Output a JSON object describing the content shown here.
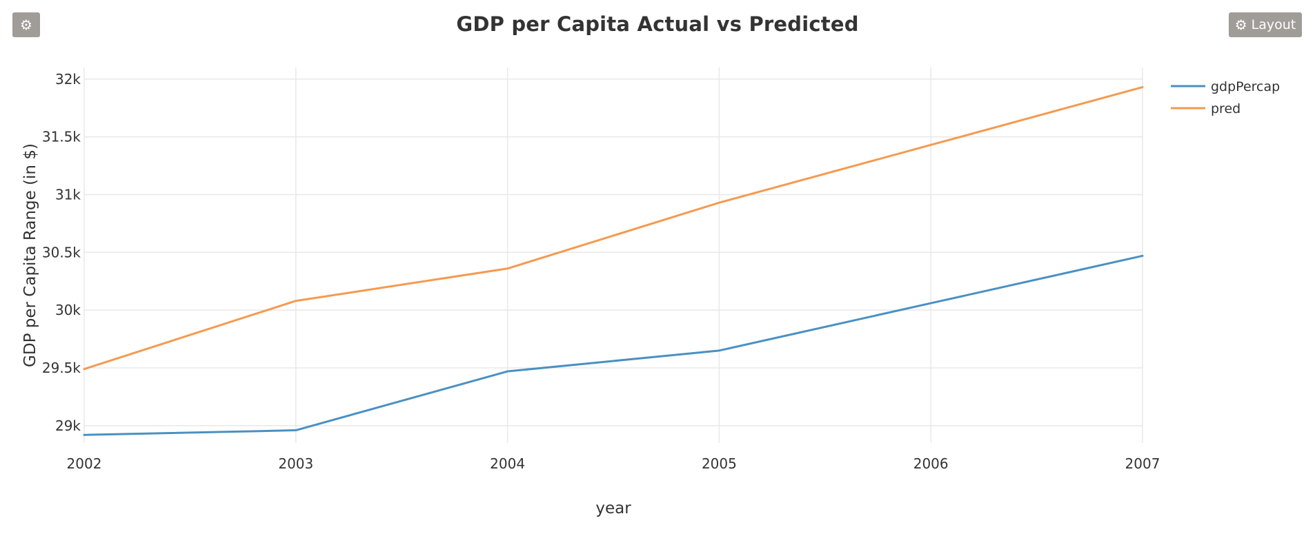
{
  "toolbar": {
    "settings_icon": "gear-icon",
    "layout_icon": "gear-icon",
    "layout_label": "Layout"
  },
  "colors": {
    "gdpPercap": "#4a90c2",
    "pred": "#f5994f"
  },
  "chart_data": {
    "type": "line",
    "title": "GDP per Capita Actual vs Predicted",
    "xlabel": "year",
    "ylabel": "GDP per Capita Range (in $)",
    "x": [
      2002,
      2003,
      2004,
      2005,
      2006,
      2007
    ],
    "xticks": [
      "2002",
      "2003",
      "2004",
      "2005",
      "2006",
      "2007"
    ],
    "yticks": [
      29000,
      29500,
      30000,
      30500,
      31000,
      31500,
      32000
    ],
    "yticklabels": [
      "29k",
      "29.5k",
      "30k",
      "30.5k",
      "31k",
      "31.5k",
      "32k"
    ],
    "xlim": [
      2002,
      2007
    ],
    "ylim": [
      28850,
      32100
    ],
    "grid": true,
    "legend": "top-right",
    "series": [
      {
        "name": "gdpPercap",
        "values": [
          28920,
          28960,
          29470,
          29650,
          30060,
          30470
        ]
      },
      {
        "name": "pred",
        "values": [
          29490,
          30080,
          30360,
          30930,
          31430,
          31930
        ]
      }
    ]
  }
}
